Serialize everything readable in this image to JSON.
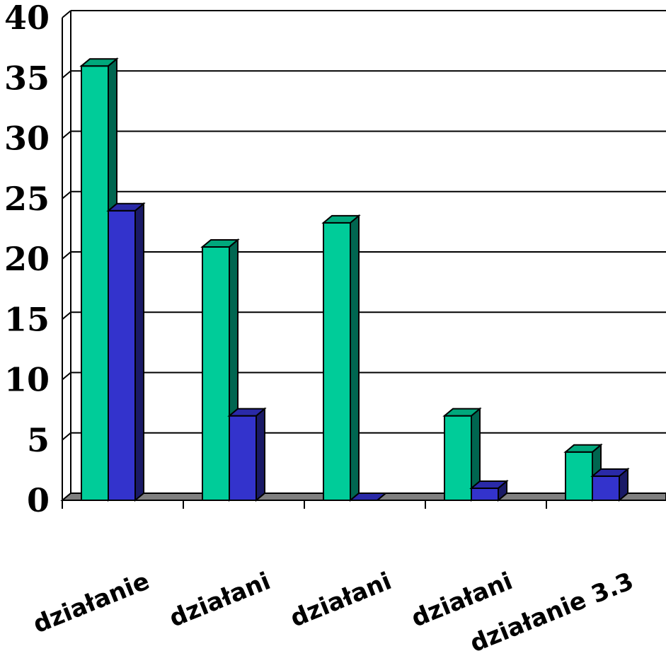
{
  "chart_data": {
    "type": "bar",
    "categories": [
      "działanie",
      "działani",
      "działani",
      "działani",
      "działanie 3.3"
    ],
    "series": [
      {
        "values": [
          36,
          21,
          23,
          7,
          4
        ]
      },
      {
        "values": [
          24,
          7,
          0,
          1,
          2
        ]
      }
    ],
    "ylim": [
      0,
      40
    ],
    "yticks": [
      "0",
      "5",
      "10",
      "15",
      "20",
      "25",
      "30",
      "35",
      "40"
    ],
    "grid": true,
    "colors": {
      "series_front": [
        "#00cc99",
        "#3333cc"
      ],
      "series_side": [
        "#006650",
        "#1a1a66"
      ],
      "series_top": [
        "#00a87c",
        "#2a2aa8"
      ],
      "floor": "#808080"
    }
  }
}
